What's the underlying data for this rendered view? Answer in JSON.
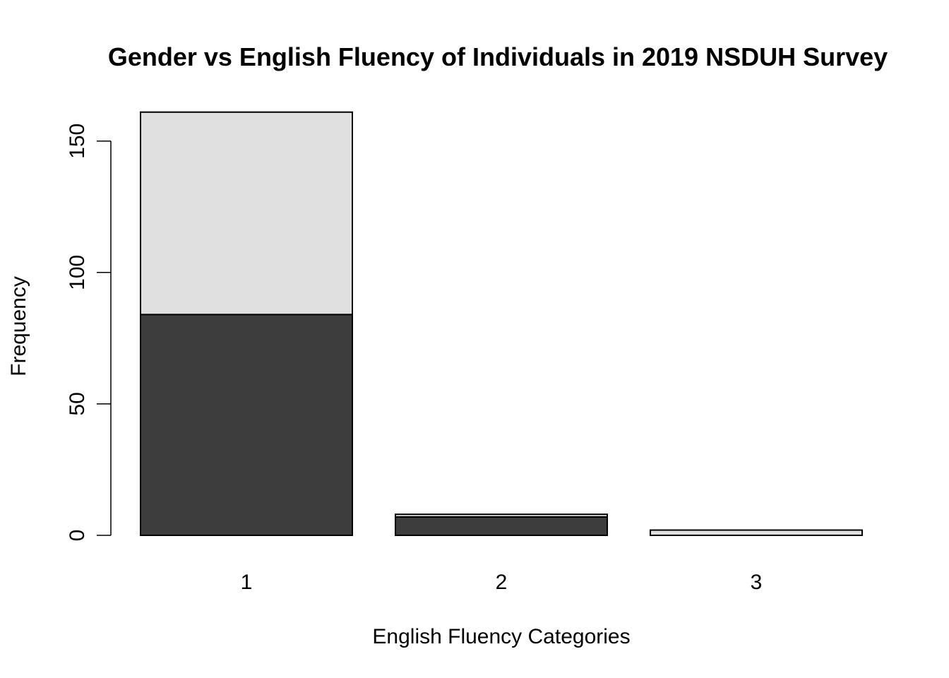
{
  "chart_data": {
    "type": "bar",
    "stacked": true,
    "title": "Gender vs English Fluency of Individuals in 2019 NSDUH Survey",
    "xlabel": "English Fluency Categories",
    "ylabel": "Frequency",
    "categories": [
      "1",
      "2",
      "3"
    ],
    "series": [
      {
        "values": [
          84,
          7,
          0
        ],
        "color": "#3d3d3d"
      },
      {
        "values": [
          77,
          1,
          2
        ],
        "color": "#e0e0e0"
      }
    ],
    "yticks": [
      0,
      50,
      100,
      150
    ],
    "ylim": [
      0,
      161
    ],
    "grid": false,
    "legend": "none"
  }
}
